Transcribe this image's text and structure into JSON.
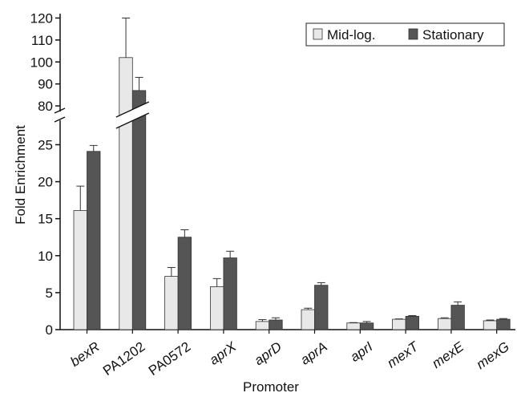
{
  "chart_data": {
    "type": "bar",
    "xlabel": "Promoter",
    "ylabel": "Fold Enrichment",
    "categories": [
      "bexR",
      "PA1202",
      "PA0572",
      "aprX",
      "aprD",
      "aprA",
      "aprI",
      "mexT",
      "mexE",
      "mexG"
    ],
    "category_italic": [
      true,
      false,
      false,
      true,
      true,
      true,
      true,
      true,
      true,
      true
    ],
    "series": [
      {
        "name": "Mid-log.",
        "color": "#e8e8e8",
        "values": [
          16.1,
          102,
          7.2,
          5.8,
          1.1,
          2.7,
          0.9,
          1.4,
          1.5,
          1.2
        ],
        "errors": [
          3.3,
          18,
          1.2,
          1.1,
          0.25,
          0.2,
          0.05,
          0.05,
          0.1,
          0.1
        ]
      },
      {
        "name": "Stationary",
        "color": "#555555",
        "values": [
          24.1,
          87,
          12.5,
          9.7,
          1.3,
          6.0,
          0.9,
          1.8,
          3.3,
          1.4
        ],
        "errors": [
          0.8,
          6,
          1.0,
          0.9,
          0.3,
          0.35,
          0.2,
          0.1,
          0.45,
          0.1
        ]
      }
    ],
    "y_lower": {
      "range": [
        0,
        27
      ],
      "ticks": [
        0,
        5,
        10,
        15,
        20,
        25
      ]
    },
    "y_upper": {
      "range": [
        76,
        122
      ],
      "ticks": [
        80,
        90,
        100,
        110,
        120
      ]
    },
    "axis_break": true,
    "legend_position": "top-right",
    "grid": false
  }
}
